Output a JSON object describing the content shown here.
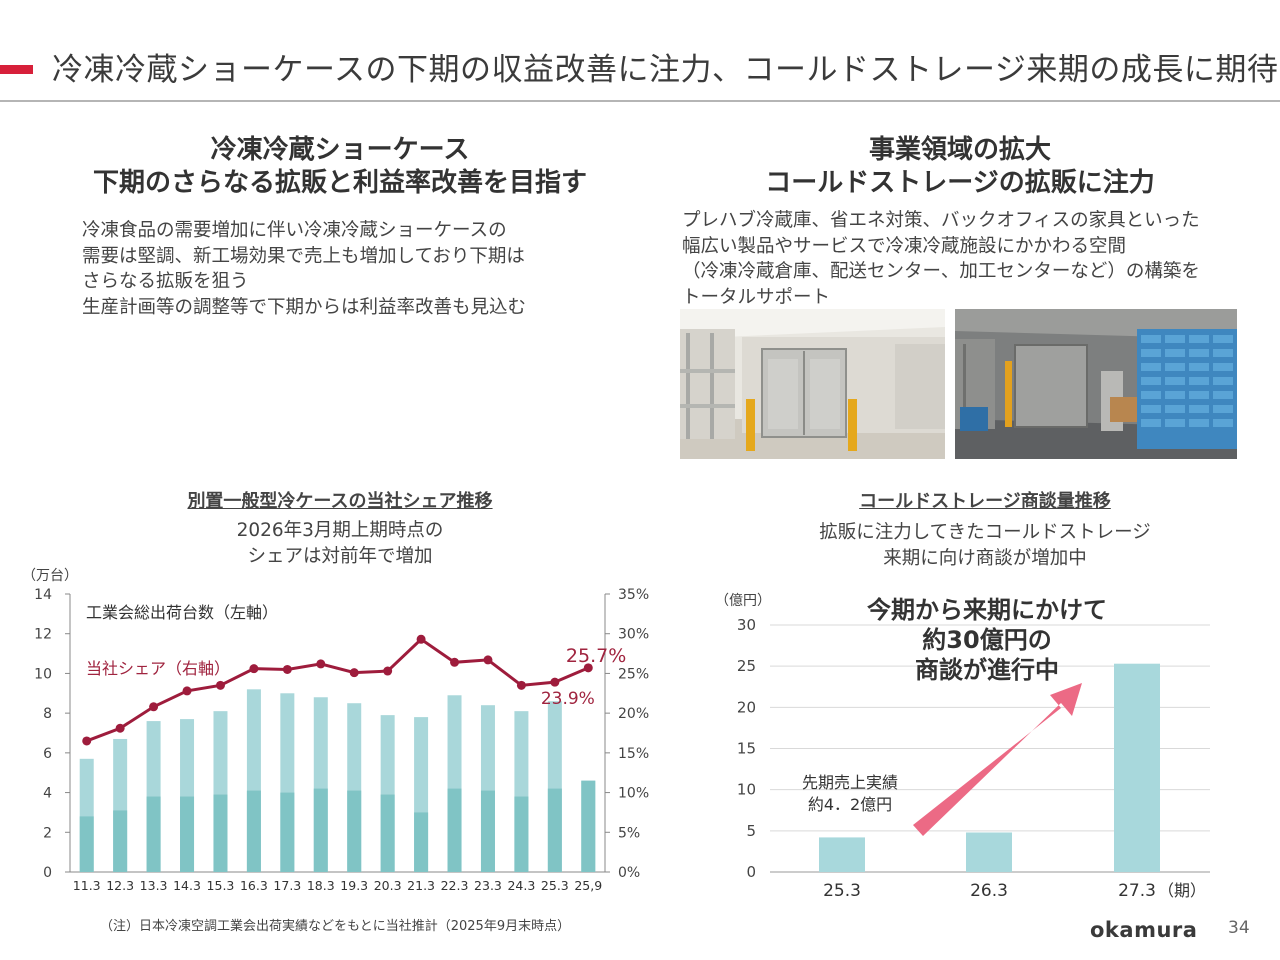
{
  "header": {
    "title": "冷凍冷蔵ショーケースの下期の収益改善に注力、コールドストレージ来期の成長に期待"
  },
  "left_section": {
    "heading_line1": "冷凍冷蔵ショーケース",
    "heading_line2": "下期のさらなる拡販と利益率改善を目指す",
    "body_lines": [
      "冷凍食品の需要増加に伴い冷凍冷蔵ショーケースの",
      "需要は堅調、新工場効果で売上も増加しており下期は",
      "さらなる拡販を狙う",
      "生産計画等の調整等で下期からは利益率改善も見込む"
    ]
  },
  "right_section": {
    "heading_line1": "事業領域の拡大",
    "heading_line2": "コールドストレージの拡販に注力",
    "body_lines": [
      "プレハブ冷蔵庫、省エネ対策、バックオフィスの家具といった",
      "幅広い製品やサービスで冷凍冷蔵施設にかかわる空間",
      "（冷凍冷蔵倉庫、配送センター、加工センターなど）の構築を",
      "トータルサポート"
    ]
  },
  "left_chart_header": {
    "title": "別置一般型冷ケースの当社シェア推移",
    "subtitle_line1": "2026年3月期上期時点の",
    "subtitle_line2": "シェアは対前年で増加"
  },
  "right_chart_header": {
    "title": "コールドストレージ商談量推移",
    "subtitle_line1": "拡販に注力してきたコールドストレージ",
    "subtitle_line2": "来期に向け商談が増加中"
  },
  "chart_data": [
    {
      "type": "bar",
      "unit_left": "（万台）",
      "categories": [
        "11.3",
        "12.3",
        "13.3",
        "14.3",
        "15.3",
        "16.3",
        "17.3",
        "18.3",
        "19.3",
        "20.3",
        "21.3",
        "22.3",
        "23.3",
        "24.3",
        "25.3",
        "25,9"
      ],
      "series": [
        {
          "name": "工業会総出荷台数（左軸）",
          "axis": "left",
          "type": "bar",
          "values": [
            5.7,
            6.7,
            7.6,
            7.7,
            8.1,
            9.2,
            9.0,
            8.8,
            8.5,
            7.9,
            7.8,
            8.9,
            8.4,
            8.1,
            8.6,
            4.6
          ]
        },
        {
          "axis": "left",
          "type": "bar",
          "values": [
            2.8,
            3.1,
            3.8,
            3.8,
            3.9,
            4.1,
            4.0,
            4.2,
            4.1,
            3.9,
            3.0,
            4.2,
            4.1,
            3.8,
            4.2,
            4.6
          ]
        },
        {
          "name": "当社シェア（右軸）",
          "axis": "right",
          "type": "line",
          "values": [
            16.5,
            18.1,
            20.8,
            22.8,
            23.5,
            25.6,
            25.5,
            26.2,
            25.1,
            25.3,
            29.3,
            26.4,
            26.7,
            23.5,
            23.9,
            25.7
          ]
        }
      ],
      "annotations": [
        "25.7%",
        "23.9%"
      ],
      "ylim_left": [
        0,
        14
      ],
      "yticks_left": [
        "0",
        "2",
        "4",
        "6",
        "8",
        "10",
        "12",
        "14"
      ],
      "ylim_right": [
        0,
        35
      ],
      "yticks_right": [
        "0%",
        "5%",
        "10%",
        "15%",
        "20%",
        "25%",
        "30%",
        "35%"
      ],
      "grid": false,
      "colors": {
        "bar_light": "#a9d7da",
        "bar_dark": "#80c4c5",
        "line": "#9e1c3c",
        "label": "#a0243f"
      }
    },
    {
      "type": "bar",
      "unit_left": "（億円）",
      "xunit": "（期）",
      "categories": [
        "25.3",
        "26.3",
        "27.3"
      ],
      "values": [
        4.2,
        4.8,
        25.3
      ],
      "ylim": [
        0,
        30
      ],
      "yticks": [
        "0",
        "5",
        "10",
        "15",
        "20",
        "25",
        "30"
      ],
      "grid": true,
      "callout_lines": [
        "今期から来期にかけて",
        "約30億円の",
        "商談が進行中"
      ],
      "label_lines": [
        "先期売上実績",
        "約4．2億円"
      ],
      "colors": {
        "bar": "#a8d8dc",
        "arrow": "#ec6a85",
        "grid": "#d9d9d9"
      }
    }
  ],
  "footer": {
    "note": "（注）日本冷凍空調工業会出荷実績などをもとに当社推計（2025年9月末時点）",
    "logo": "okamura",
    "page_number": "34"
  }
}
